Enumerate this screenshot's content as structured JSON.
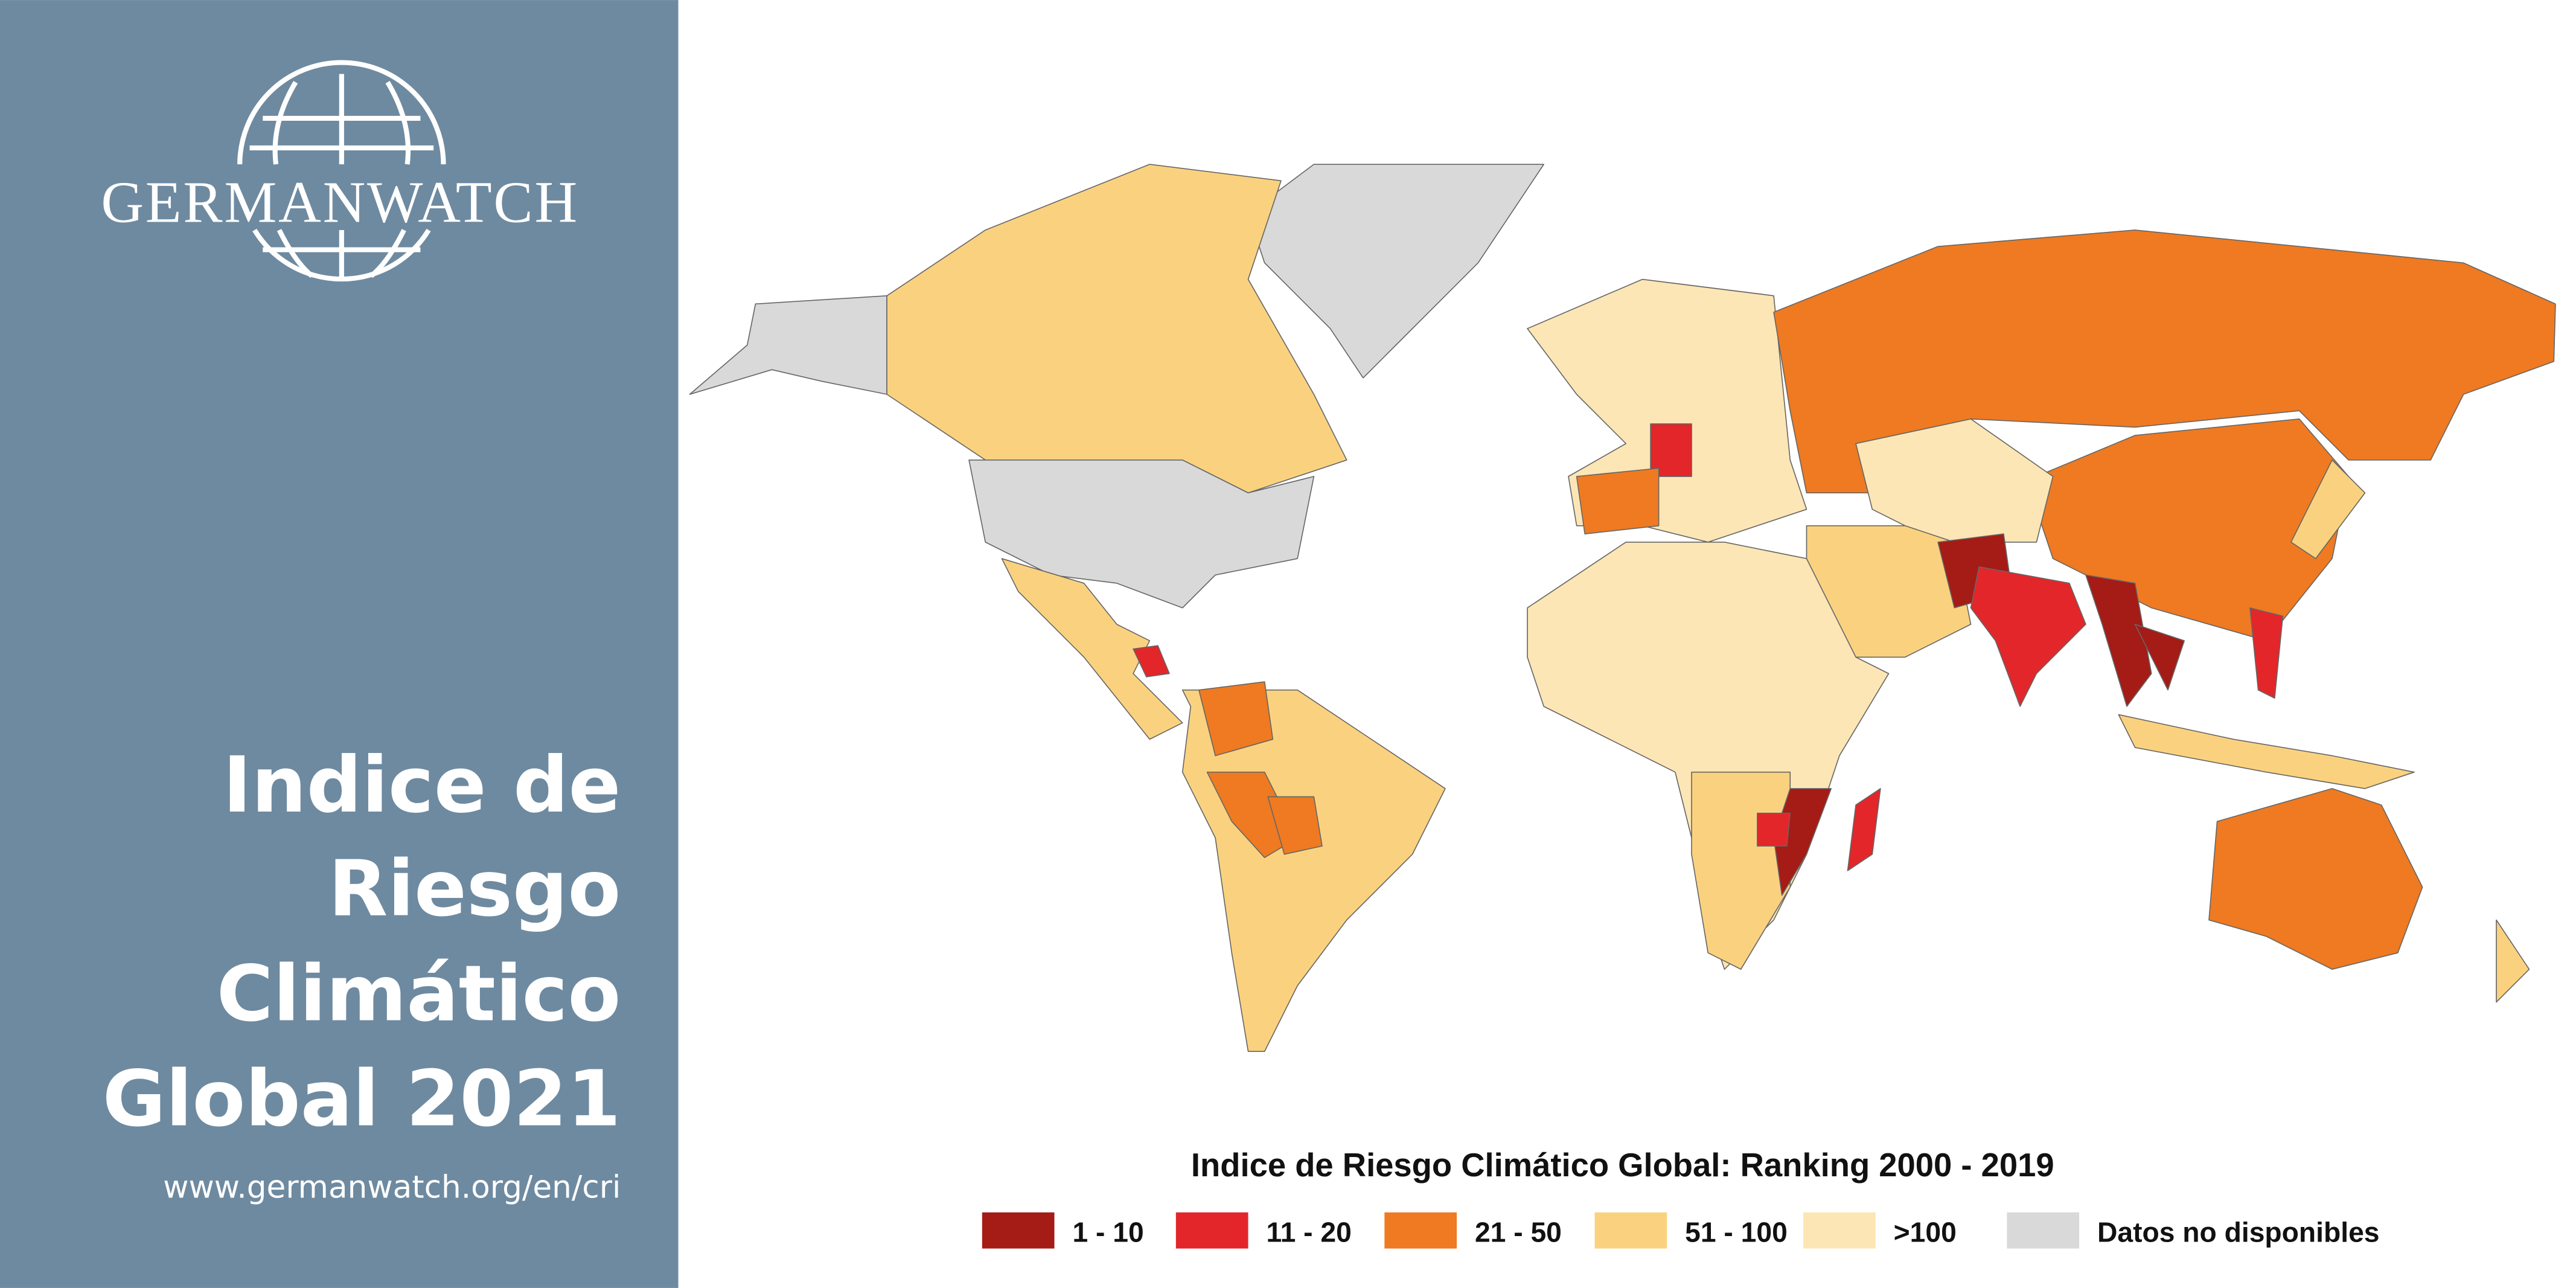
{
  "sidebar": {
    "logo": "GERMANWATCH",
    "title": [
      "Indice de",
      "Riesgo",
      "Climático",
      "Global 2021"
    ],
    "url": "www.germanwatch.org/en/cri"
  },
  "legend": {
    "title": "Indice de Riesgo Climático Global: Ranking 2000 - 2019",
    "items": [
      {
        "label": "1 - 10",
        "color": "#a51b16"
      },
      {
        "label": "11 - 20",
        "color": "#e3262a"
      },
      {
        "label": "21 - 50",
        "color": "#ef7a21"
      },
      {
        "label": "51 - 100",
        "color": "#fad27f"
      },
      {
        "label": ">100",
        "color": "#fde6b5"
      },
      {
        "label": "Datos no disponibles",
        "color": "#d9d9d9"
      }
    ]
  }
}
